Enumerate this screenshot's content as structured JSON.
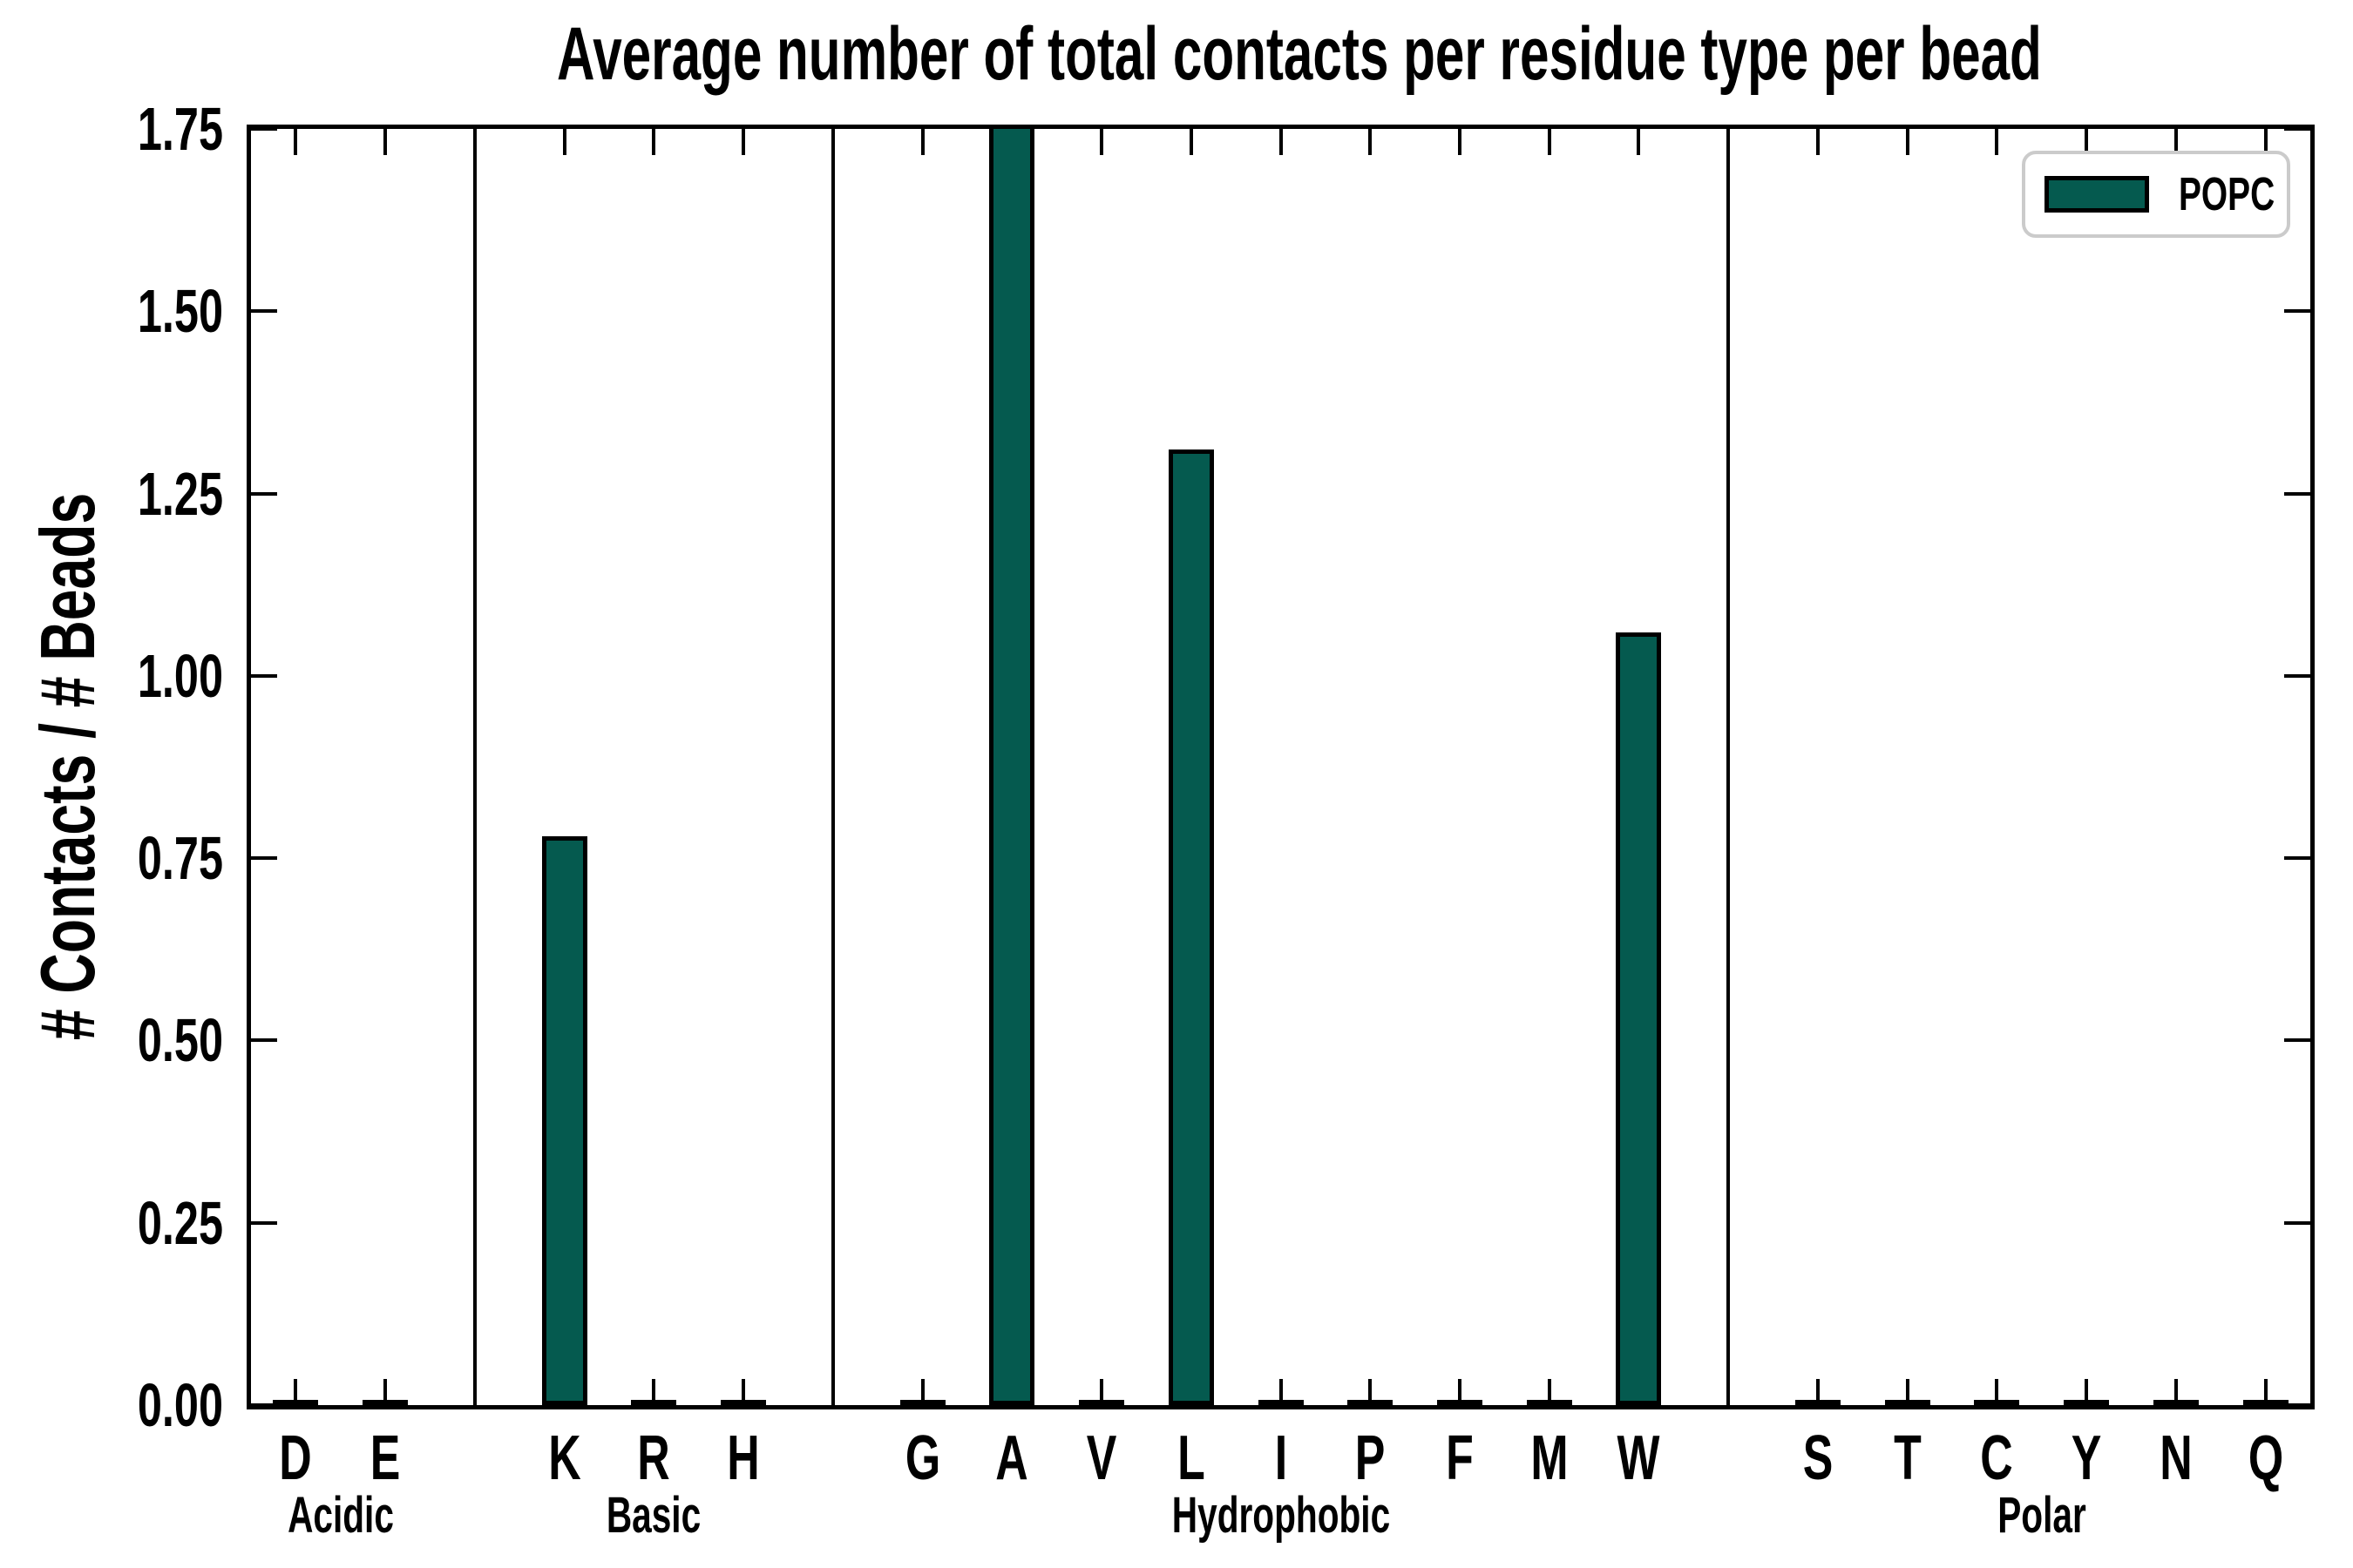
{
  "figure": {
    "title": "Average number of total contacts per residue type per bead",
    "y_axis": {
      "label": "# Contacts / # Beads",
      "tick_labels": [
        "0.00",
        "0.25",
        "0.50",
        "0.75",
        "1.00",
        "1.25",
        "1.50",
        "1.75"
      ],
      "min": 0,
      "max": 1.75,
      "tick_step": 0.25
    },
    "legend": {
      "items": [
        {
          "label": "POPC",
          "swatch_color": "#055A4F"
        }
      ]
    },
    "colors": {
      "bar_fill": "#055A4F",
      "bar_edge": "#000000",
      "axis": "#000000",
      "legend_border": "#cbcbcb",
      "background": "#ffffff"
    },
    "groups": [
      {
        "label": "Acidic",
        "residues": [
          {
            "label": "D",
            "value": 0.0
          },
          {
            "label": "E",
            "value": 0.0
          }
        ]
      },
      {
        "label": "Basic",
        "residues": [
          {
            "label": "K",
            "value": 0.78
          },
          {
            "label": "R",
            "value": 0.0
          },
          {
            "label": "H",
            "value": 0.0
          }
        ]
      },
      {
        "label": "Hydrophobic",
        "residues": [
          {
            "label": "G",
            "value": 0.0
          },
          {
            "label": "A",
            "value": 1.75,
            "clipped": true
          },
          {
            "label": "V",
            "value": 0.0
          },
          {
            "label": "L",
            "value": 1.31
          },
          {
            "label": "I",
            "value": 0.0
          },
          {
            "label": "P",
            "value": 0.0
          },
          {
            "label": "F",
            "value": 0.0
          },
          {
            "label": "M",
            "value": 0.0
          },
          {
            "label": "W",
            "value": 1.06
          }
        ]
      },
      {
        "label": "Polar",
        "residues": [
          {
            "label": "S",
            "value": 0.0
          },
          {
            "label": "T",
            "value": 0.0
          },
          {
            "label": "C",
            "value": 0.0
          },
          {
            "label": "Y",
            "value": 0.0
          },
          {
            "label": "N",
            "value": 0.0
          },
          {
            "label": "Q",
            "value": 0.0
          }
        ]
      }
    ]
  },
  "chart_data": {
    "type": "bar",
    "title": "Average number of total contacts per residue type per bead",
    "xlabel": "",
    "ylabel": "# Contacts / # Beads",
    "ylim": [
      0,
      1.75
    ],
    "ytick_interval": 0.25,
    "grid": false,
    "legend_entries": [
      "POPC"
    ],
    "legend_position": "upper right",
    "bar_color": "#055A4F",
    "bar_edge_color": "#000000",
    "categories": [
      "D",
      "E",
      "K",
      "R",
      "H",
      "G",
      "A",
      "V",
      "L",
      "I",
      "P",
      "F",
      "M",
      "W",
      "S",
      "T",
      "C",
      "Y",
      "N",
      "Q"
    ],
    "series": [
      {
        "name": "POPC",
        "values": [
          0.0,
          0.0,
          0.78,
          0.0,
          0.0,
          0.0,
          1.75,
          0.0,
          1.31,
          0.0,
          0.0,
          0.0,
          0.0,
          1.06,
          0.0,
          0.0,
          0.0,
          0.0,
          0.0,
          0.0
        ]
      }
    ],
    "x_group_labels": [
      {
        "label": "Acidic",
        "categories": [
          "D",
          "E"
        ]
      },
      {
        "label": "Basic",
        "categories": [
          "K",
          "R",
          "H"
        ]
      },
      {
        "label": "Hydrophobic",
        "categories": [
          "G",
          "A",
          "V",
          "L",
          "I",
          "P",
          "F",
          "M",
          "W"
        ]
      },
      {
        "label": "Polar",
        "categories": [
          "S",
          "T",
          "C",
          "Y",
          "N",
          "Q"
        ]
      }
    ],
    "annotations": [
      "Bar for residue A exceeds the y-axis maximum and is clipped at 1.75",
      "Vertical divider lines separate the four residue-type groups"
    ]
  }
}
